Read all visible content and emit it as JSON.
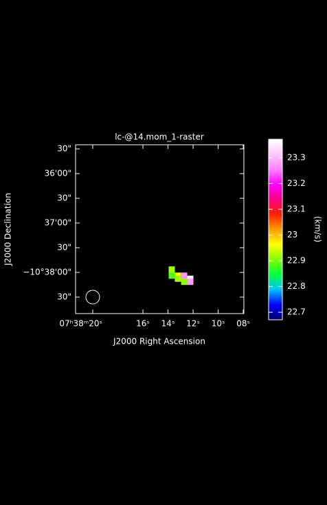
{
  "chart_data": {
    "type": "raster",
    "title": "lc-@14.mom_1-raster",
    "xlabel": "J2000 Right Ascension",
    "ylabel": "J2000 Declination",
    "colorbar_label": "(km/s)",
    "xlim": [
      21.37,
      7.95
    ],
    "ylim": [
      35.417,
      38.833
    ],
    "xticks": [
      {
        "value": 20,
        "label": "07ʰ38ᵐ20ˢ"
      },
      {
        "value": 16,
        "label": "16ˢ"
      },
      {
        "value": 14,
        "label": "14ˢ"
      },
      {
        "value": 12,
        "label": "12ˢ"
      },
      {
        "value": 10,
        "label": "10ˢ"
      },
      {
        "value": 8,
        "label": "08ˢ"
      }
    ],
    "yticks": [
      {
        "value": 35.5,
        "label": "30\""
      },
      {
        "value": 36,
        "label": "36'00\""
      },
      {
        "value": 36.5,
        "label": "30\""
      },
      {
        "value": 37,
        "label": "37'00\""
      },
      {
        "value": 37.5,
        "label": "30\""
      },
      {
        "value": 38,
        "label": "−10°38'00\""
      },
      {
        "value": 38.5,
        "label": "30\""
      }
    ],
    "clim": [
      22.671,
      23.372
    ],
    "cticks": [
      22.7,
      22.8,
      22.9,
      23,
      23.1,
      23.2,
      23.3
    ],
    "colormap": [
      "#000060",
      "#0000ff",
      "#00c0ff",
      "#00ff40",
      "#80ff00",
      "#ffff00",
      "#ffa000",
      "#ff2000",
      "#ff0080",
      "#ff00ff",
      "#ff80ff",
      "#ffc8ff",
      "#ffffff"
    ],
    "x": [
      13.7,
      13.7,
      13.7,
      13.21,
      12.71,
      13.21,
      12.71,
      12.22,
      12.71,
      12.22
    ],
    "y": [
      37.941,
      38.003,
      38.066,
      38.066,
      38.066,
      38.128,
      38.128,
      38.128,
      38.191,
      38.191
    ],
    "values": [
      22.92,
      22.92,
      22.88,
      22.96,
      23.27,
      22.92,
      23.27,
      23.36,
      22.91,
      23.28
    ]
  }
}
